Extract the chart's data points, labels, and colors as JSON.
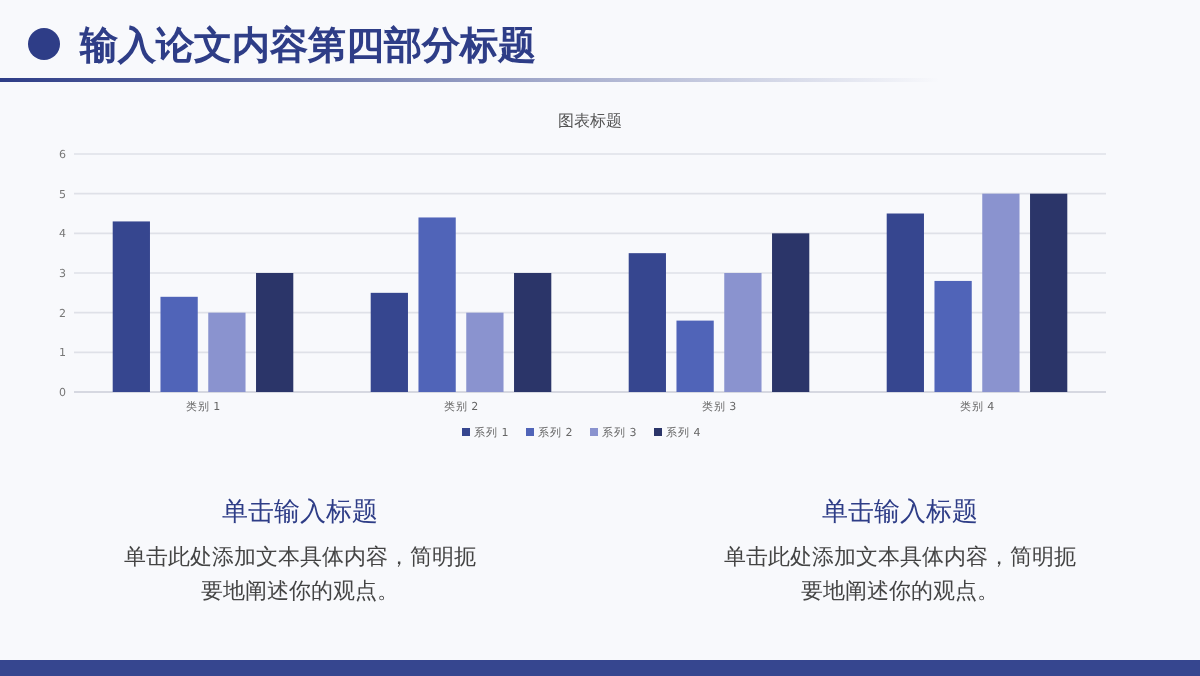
{
  "chart_data": {
    "type": "bar",
    "title": "输入论文内容第四部分标题",
    "subtitle": "图表标题",
    "categories": [
      "类别 1",
      "类别 2",
      "类别 3",
      "类别 4"
    ],
    "series": [
      {
        "name": "系列 1",
        "color": "#36468f",
        "values": [
          4.3,
          2.5,
          3.5,
          4.5
        ]
      },
      {
        "name": "系列 2",
        "color": "#5064b8",
        "values": [
          2.4,
          4.4,
          1.8,
          2.8
        ]
      },
      {
        "name": "系列 3",
        "color": "#8a93cf",
        "values": [
          2,
          2,
          3,
          5
        ]
      },
      {
        "name": "系列 4",
        "color": "#2b3569",
        "values": [
          3,
          3,
          4,
          5
        ]
      }
    ],
    "ylim": [
      0,
      6
    ],
    "yticks": [
      0,
      1,
      2,
      3,
      4,
      5,
      6
    ],
    "grid": "y",
    "legend": "bottom",
    "annotations": [
      "单击输入标题",
      "单击此处添加文本具体内容，简明扼要地阐述你的观点。",
      "单击输入标题",
      "单击此处添加文本具体内容，简明扼要地阐述你的观点。"
    ]
  }
}
